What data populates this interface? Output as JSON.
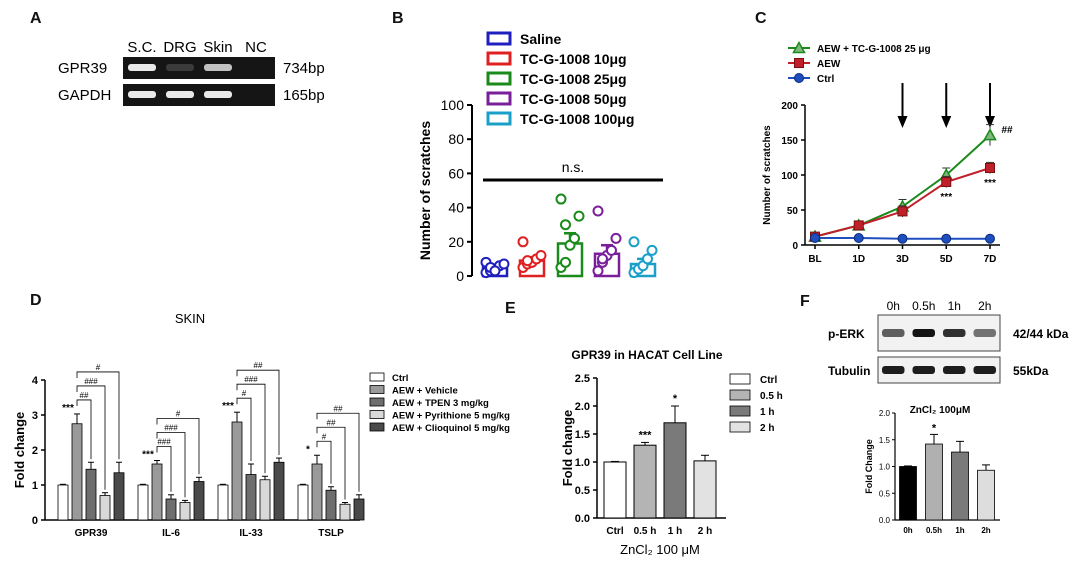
{
  "panel_labels": [
    "A",
    "B",
    "C",
    "D",
    "E",
    "F"
  ],
  "chart_data": [
    {
      "panel": "A",
      "type": "table",
      "columns": [
        "S.C.",
        "DRG",
        "Skin",
        "NC"
      ],
      "rows": [
        {
          "gene": "GPR39",
          "size": "734bp",
          "band_intensity": [
            0.95,
            0.35,
            0.85,
            0.0
          ]
        },
        {
          "gene": "GAPDH",
          "size": "165bp",
          "band_intensity": [
            0.95,
            0.95,
            0.95,
            0.0
          ]
        }
      ]
    },
    {
      "panel": "B",
      "type": "bar",
      "ylabel": "Number of scratches",
      "ylim": [
        0,
        100
      ],
      "yticks": [
        0,
        20,
        40,
        60,
        80,
        100
      ],
      "annotation": "n.s.",
      "legend": [
        "Saline",
        "TC-G-1008 10μg",
        "TC-G-1008 25μg",
        "TC-G-1008 50μg",
        "TC-G-1008 100μg"
      ],
      "colors": [
        "#1f1fbf",
        "#e02020",
        "#1a8a1a",
        "#7a1f9a",
        "#1aa0c8"
      ],
      "means": [
        5,
        9,
        19,
        13,
        7
      ],
      "sem": [
        1.5,
        2,
        6,
        5,
        3
      ],
      "points": [
        [
          2,
          3,
          4,
          6,
          7,
          8,
          5,
          3
        ],
        [
          5,
          7,
          8,
          10,
          12,
          20,
          9
        ],
        [
          5,
          8,
          18,
          22,
          35,
          45,
          30
        ],
        [
          3,
          8,
          12,
          15,
          22,
          38,
          10
        ],
        [
          2,
          4,
          6,
          10,
          15,
          20
        ]
      ]
    },
    {
      "panel": "C",
      "type": "line",
      "ylabel": "Number of scratches",
      "categories": [
        "BL",
        "1D",
        "3D",
        "5D",
        "7D"
      ],
      "ylim": [
        0,
        200
      ],
      "yticks": [
        0,
        50,
        100,
        150,
        200
      ],
      "series": [
        {
          "name": "AEW + TC-G-1008 25 μg",
          "color": "#1a8a1a",
          "marker": "triangle",
          "values": [
            12,
            28,
            55,
            100,
            157
          ],
          "sem": [
            3,
            4,
            10,
            10,
            15
          ]
        },
        {
          "name": "AEW",
          "color": "#c0202a",
          "marker": "square",
          "values": [
            12,
            28,
            48,
            90,
            110
          ],
          "sem": [
            3,
            4,
            8,
            8,
            8
          ]
        },
        {
          "name": "Ctrl",
          "color": "#1f4fbf",
          "marker": "circle",
          "values": [
            10,
            10,
            9,
            9,
            9
          ],
          "sem": [
            1,
            1,
            1,
            1,
            1
          ]
        }
      ],
      "annotations": [
        {
          "text": "***",
          "category": "5D"
        },
        {
          "text": "***",
          "category": "7D"
        },
        {
          "text": "##",
          "category": "7D"
        }
      ],
      "arrows_at": [
        "3D",
        "5D",
        "7D"
      ]
    },
    {
      "panel": "D",
      "type": "bar",
      "title": "SKIN",
      "ylabel": "Fold change",
      "categories": [
        "GPR39",
        "IL-6",
        "IL-33",
        "TSLP"
      ],
      "ylim": [
        0,
        4
      ],
      "yticks": [
        0,
        1,
        2,
        3,
        4
      ],
      "legend": [
        "Ctrl",
        "AEW + Vehicle",
        "AEW + TPEN 3 mg/kg",
        "AEW + Pyrithione 5 mg/kg",
        "AEW + Clioquinol 5 mg/kg"
      ],
      "colors": [
        "#ffffff",
        "#9a9a9a",
        "#6e6e6e",
        "#d8d8d8",
        "#4a4a4a"
      ],
      "series_values": [
        [
          1,
          2.75,
          1.45,
          0.7,
          1.35
        ],
        [
          1,
          1.6,
          0.6,
          0.5,
          1.1
        ],
        [
          1,
          2.8,
          1.3,
          1.15,
          1.65
        ],
        [
          1,
          1.6,
          0.85,
          0.45,
          0.6
        ]
      ],
      "series_sem": [
        [
          0.02,
          0.28,
          0.2,
          0.08,
          0.3
        ],
        [
          0.02,
          0.1,
          0.12,
          0.06,
          0.12
        ],
        [
          0.02,
          0.28,
          0.3,
          0.1,
          0.12
        ],
        [
          0.02,
          0.25,
          0.1,
          0.05,
          0.12
        ]
      ],
      "star_labels": [
        "***",
        "***",
        "***",
        "*"
      ],
      "bracket_labels": [
        [
          "##",
          "###",
          "#"
        ],
        [
          "###",
          "###",
          "#"
        ],
        [
          "#",
          "###",
          "##"
        ],
        [
          "#",
          "##",
          "##"
        ]
      ]
    },
    {
      "panel": "E",
      "type": "bar",
      "title": "GPR39 in HACAT Cell Line",
      "ylabel": "Fold change",
      "xlabel": "ZnCl₂  100 μM",
      "categories": [
        "Ctrl",
        "0.5 h",
        "1 h",
        "2 h"
      ],
      "values": [
        1,
        1.3,
        1.7,
        1.02
      ],
      "sem": [
        0.01,
        0.05,
        0.3,
        0.1
      ],
      "colors": [
        "#ffffff",
        "#b4b4b4",
        "#7a7a7a",
        "#e2e2e2"
      ],
      "ylim": [
        0,
        2.5
      ],
      "yticks": [
        0.0,
        0.5,
        1.0,
        1.5,
        2.0,
        2.5
      ],
      "annotations": [
        "",
        "***",
        "*",
        ""
      ]
    },
    {
      "panel": "F",
      "type": "bar",
      "title": "ZnCl₂  100μM",
      "ylabel": "Fold Change",
      "categories": [
        "0h",
        "0.5h",
        "1h",
        "2h"
      ],
      "values": [
        1.0,
        1.42,
        1.27,
        0.93
      ],
      "sem": [
        0.01,
        0.18,
        0.2,
        0.1
      ],
      "colors": [
        "#000000",
        "#b0b0b0",
        "#7a7a7a",
        "#dddddd"
      ],
      "ylim": [
        0,
        2.0
      ],
      "yticks": [
        0.0,
        0.5,
        1.0,
        1.5,
        2.0
      ],
      "annotations": [
        "",
        "*",
        "",
        ""
      ],
      "blot": {
        "lanes": [
          "0h",
          "0.5h",
          "1h",
          "2h"
        ],
        "rows": [
          {
            "name": "p-ERK",
            "size": "42/44 kDa",
            "band_intensity": [
              0.55,
              0.95,
              0.8,
              0.45
            ]
          },
          {
            "name": "Tubulin",
            "size": "55kDa",
            "band_intensity": [
              0.9,
              0.9,
              0.9,
              0.9
            ]
          }
        ]
      }
    }
  ]
}
